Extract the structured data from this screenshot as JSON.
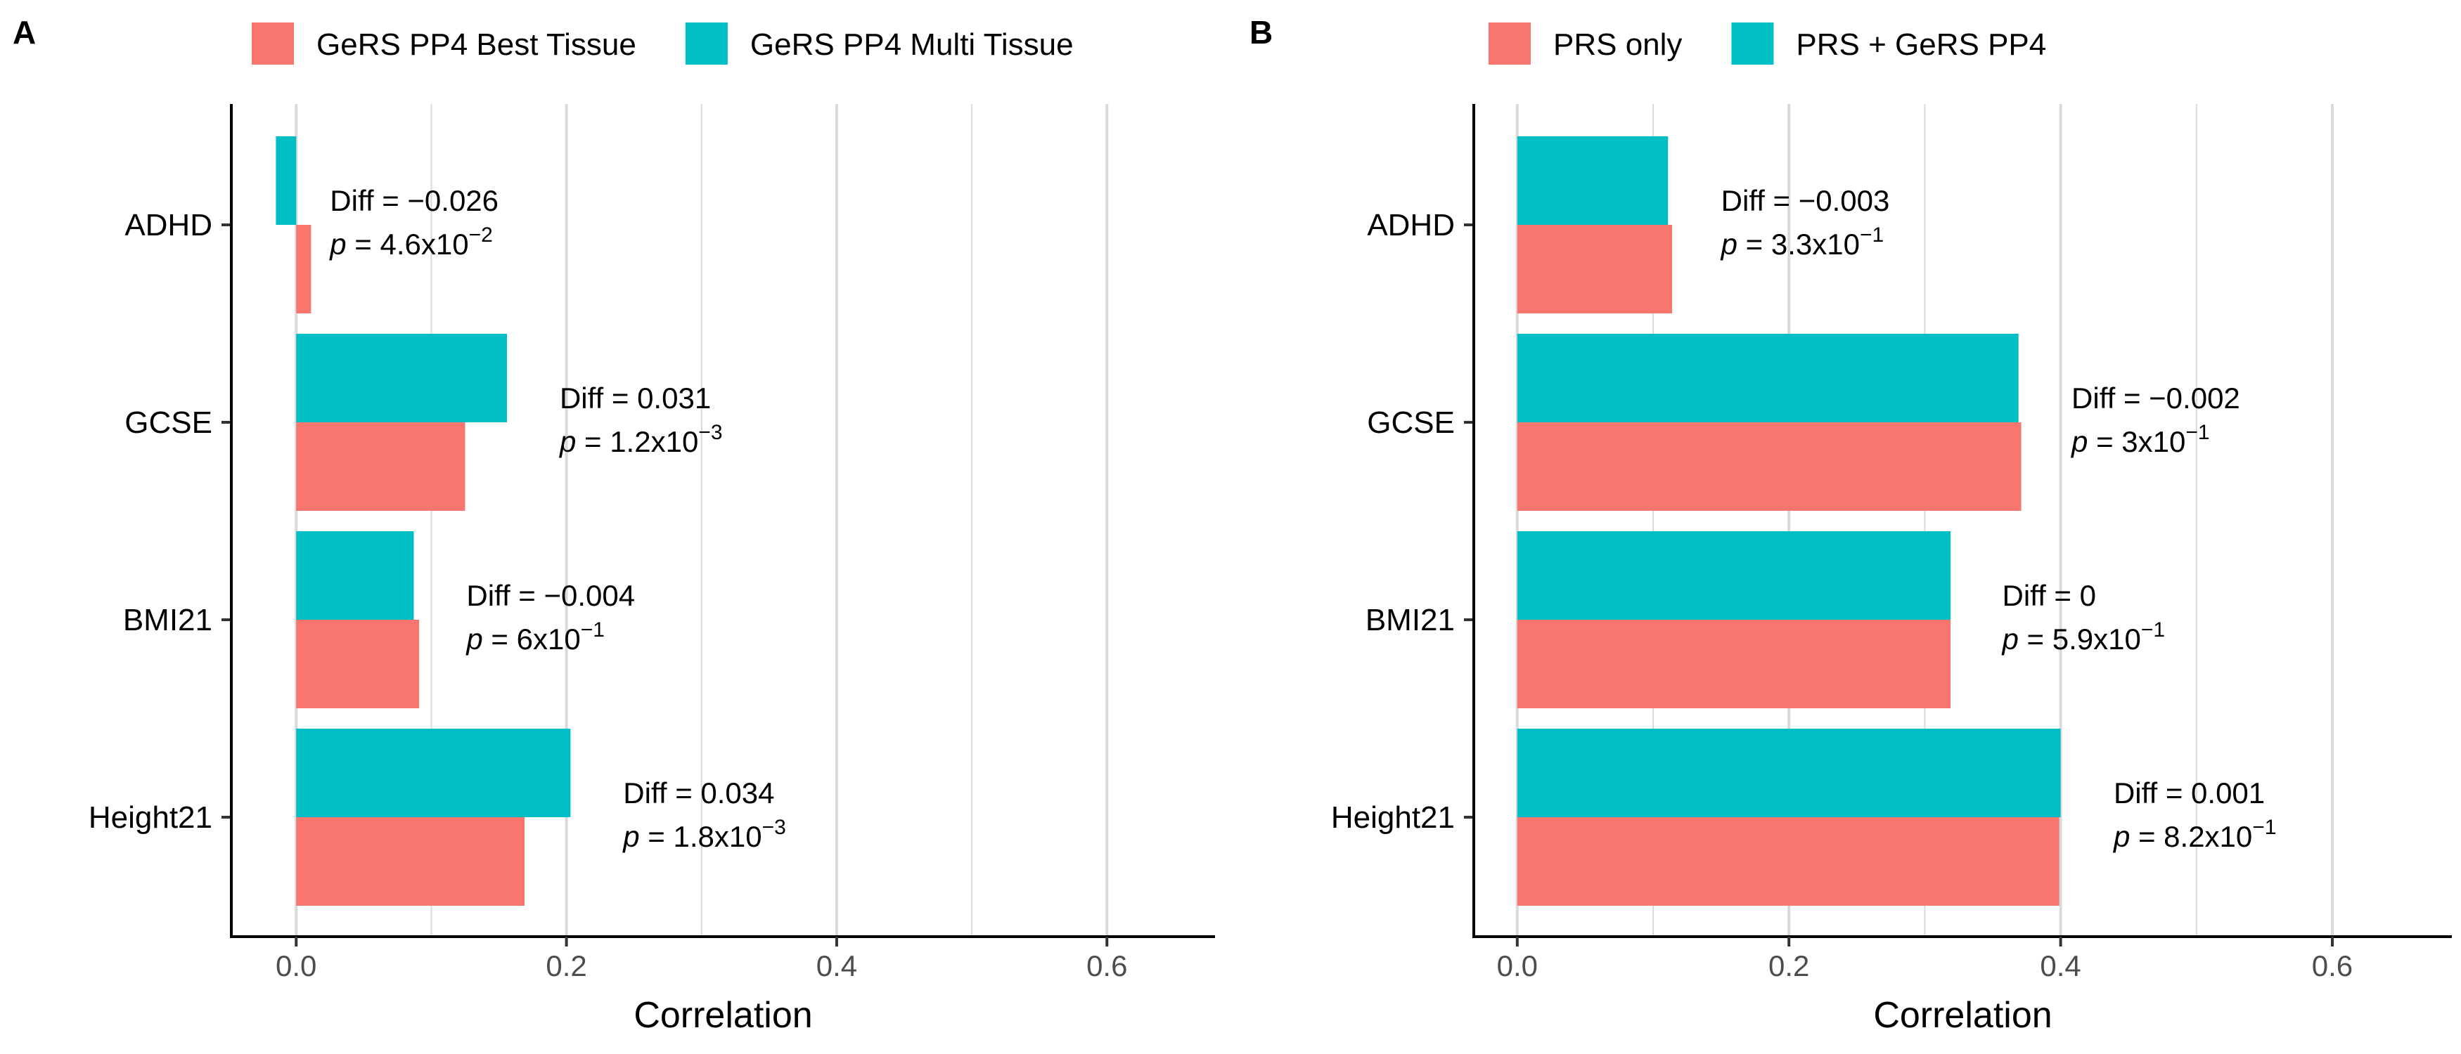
{
  "chart_data": [
    {
      "panel_label": "A",
      "type": "bar",
      "orientation": "horizontal",
      "xlabel": "Correlation",
      "xlim": [
        -0.048,
        0.68
      ],
      "xticks": [
        "0.0",
        "0.2",
        "0.4",
        "0.6"
      ],
      "xtick_values": [
        0.0,
        0.2,
        0.4,
        0.6
      ],
      "categories": [
        "ADHD",
        "GCSE",
        "BMI21",
        "Height21"
      ],
      "series": [
        {
          "name": "GeRS PP4 Best Tissue",
          "color": "#F8766D",
          "values": [
            0.011,
            0.125,
            0.091,
            0.169
          ]
        },
        {
          "name": "GeRS PP4 Multi Tissue",
          "color": "#00BFC4",
          "values": [
            -0.015,
            0.156,
            0.087,
            0.203
          ]
        }
      ],
      "legend_position": "top",
      "grid": "vertical",
      "annotations": [
        {
          "category": "ADHD",
          "x_value": 0.025,
          "diff": "−0.026",
          "p_mantissa": "4.6",
          "p_exp": "−2"
        },
        {
          "category": "GCSE",
          "x_value": 0.195,
          "diff": "0.031",
          "p_mantissa": "1.2",
          "p_exp": "−3"
        },
        {
          "category": "BMI21",
          "x_value": 0.126,
          "diff": "−0.004",
          "p_mantissa": "6",
          "p_exp": "−1"
        },
        {
          "category": "Height21",
          "x_value": 0.242,
          "diff": "0.034",
          "p_mantissa": "1.8",
          "p_exp": "−3"
        }
      ]
    },
    {
      "panel_label": "B",
      "type": "bar",
      "orientation": "horizontal",
      "xlabel": "Correlation",
      "xlim": [
        -0.032,
        0.688
      ],
      "xticks": [
        "0.0",
        "0.2",
        "0.4",
        "0.6"
      ],
      "xtick_values": [
        0.0,
        0.2,
        0.4,
        0.6
      ],
      "categories": [
        "ADHD",
        "GCSE",
        "BMI21",
        "Height21"
      ],
      "series": [
        {
          "name": "PRS only",
          "color": "#F8766D",
          "values": [
            0.114,
            0.371,
            0.319,
            0.399
          ]
        },
        {
          "name": "PRS + GeRS PP4",
          "color": "#00BFC4",
          "values": [
            0.111,
            0.369,
            0.319,
            0.4
          ]
        }
      ],
      "legend_position": "top",
      "grid": "vertical",
      "annotations": [
        {
          "category": "ADHD",
          "x_value": 0.15,
          "diff": "−0.003",
          "p_mantissa": "3.3",
          "p_exp": "−1"
        },
        {
          "category": "GCSE",
          "x_value": 0.408,
          "diff": "−0.002",
          "p_mantissa": "3",
          "p_exp": "−1"
        },
        {
          "category": "BMI21",
          "x_value": 0.357,
          "diff": "0",
          "p_mantissa": "5.9",
          "p_exp": "−1"
        },
        {
          "category": "Height21",
          "x_value": 0.439,
          "diff": "0.001",
          "p_mantissa": "8.2",
          "p_exp": "−1"
        }
      ]
    }
  ]
}
